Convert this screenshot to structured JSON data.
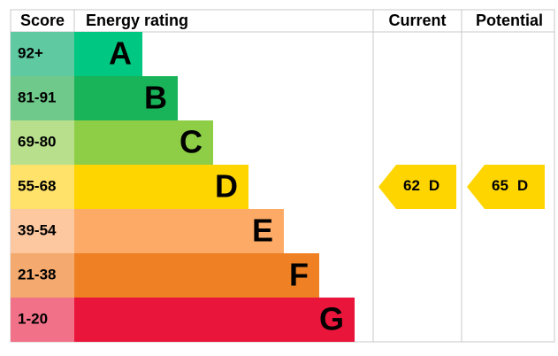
{
  "header": {
    "score": "Score",
    "rating": "Energy rating",
    "current": "Current",
    "potential": "Potential"
  },
  "rows": [
    {
      "score": "92+",
      "letter": "A"
    },
    {
      "score": "81-91",
      "letter": "B"
    },
    {
      "score": "69-80",
      "letter": "C"
    },
    {
      "score": "55-68",
      "letter": "D"
    },
    {
      "score": "39-54",
      "letter": "E"
    },
    {
      "score": "21-38",
      "letter": "F"
    },
    {
      "score": "1-20",
      "letter": "G"
    }
  ],
  "current": {
    "value": 62,
    "letter": "D"
  },
  "potential": {
    "value": 65,
    "letter": "D"
  }
}
